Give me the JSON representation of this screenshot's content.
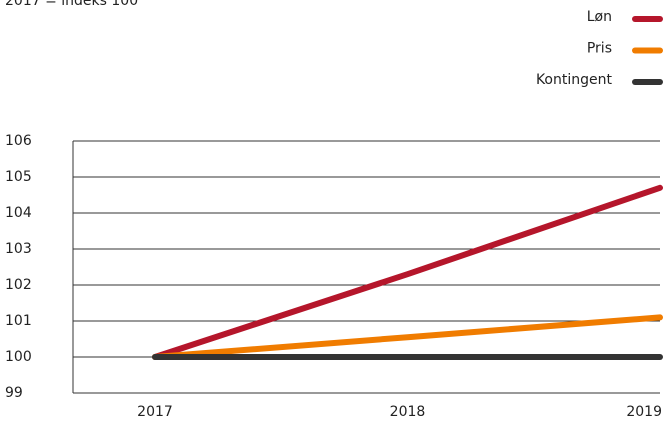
{
  "chart_data": {
    "type": "line",
    "subtitle": "2017 = indeks 100",
    "categories": [
      "2017",
      "2018",
      "2019"
    ],
    "series": [
      {
        "name": "Løn",
        "color": "#b5162b",
        "values": [
          100,
          102.3,
          104.7
        ]
      },
      {
        "name": "Pris",
        "color": "#f07c00",
        "values": [
          100,
          100.55,
          101.1
        ]
      },
      {
        "name": "Kontingent",
        "color": "#333333",
        "values": [
          100,
          100,
          100
        ]
      }
    ],
    "ylim": [
      99,
      106
    ],
    "yticks": [
      99,
      100,
      101,
      102,
      103,
      104,
      105,
      106
    ],
    "grid": true,
    "legend": "top-right"
  }
}
